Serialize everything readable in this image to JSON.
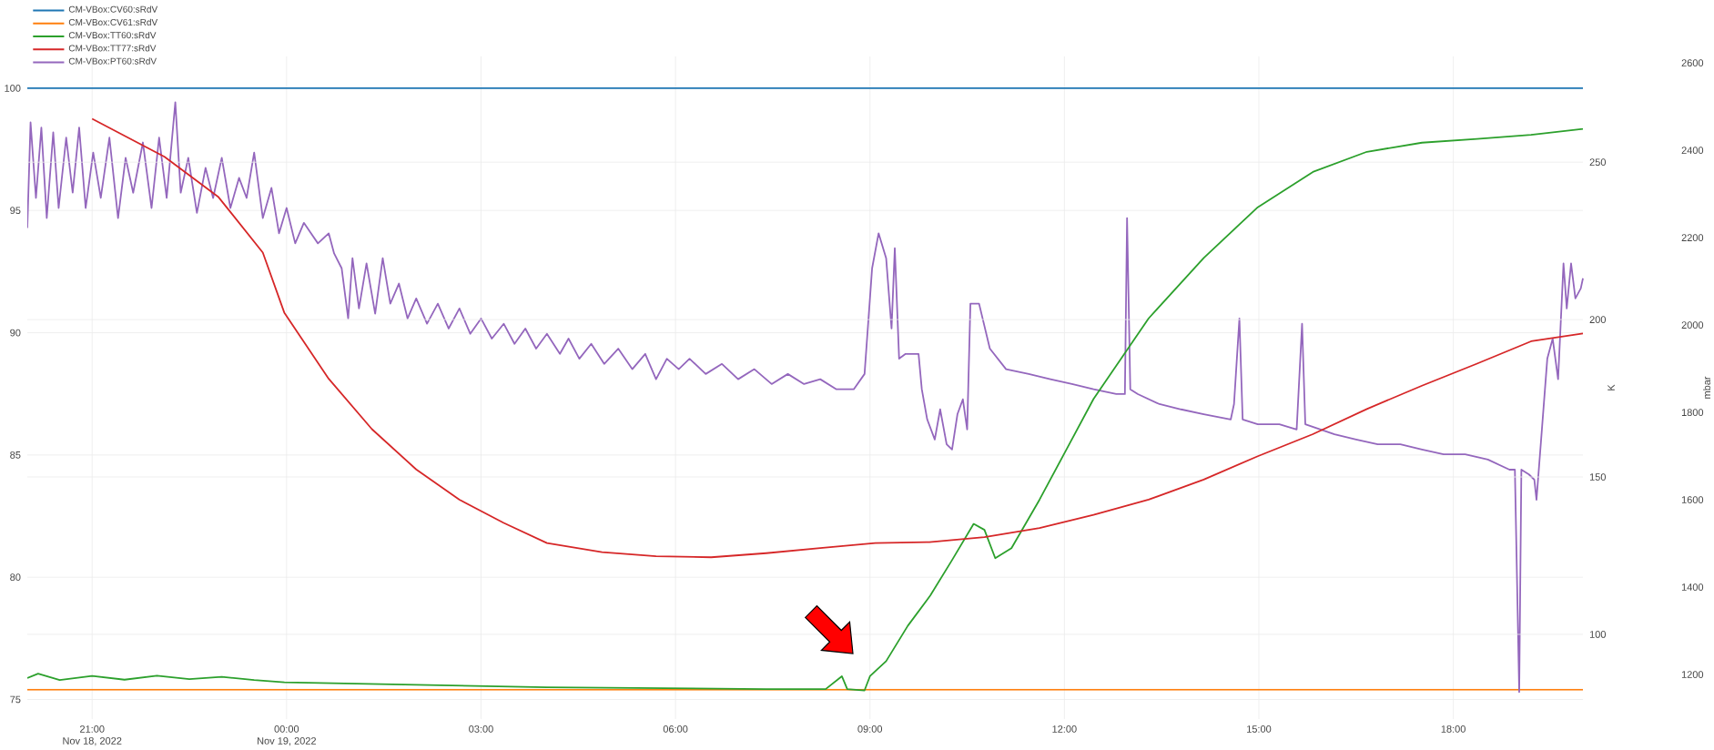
{
  "chart_data": {
    "type": "line",
    "xlim": [
      "2022-11-18T20:00",
      "2022-11-19T20:00"
    ],
    "xticks": [
      {
        "value": "2022-11-18T21:00",
        "label": "21:00\nNov 18, 2022"
      },
      {
        "value": "2022-11-19T00:00",
        "label": "00:00\nNov 19, 2022"
      },
      {
        "value": "2022-11-19T03:00",
        "label": "03:00"
      },
      {
        "value": "2022-11-19T06:00",
        "label": "06:00"
      },
      {
        "value": "2022-11-19T09:00",
        "label": "09:00"
      },
      {
        "value": "2022-11-19T12:00",
        "label": "12:00"
      },
      {
        "value": "2022-11-19T15:00",
        "label": "15:00"
      },
      {
        "value": "2022-11-19T18:00",
        "label": "18:00"
      }
    ],
    "ylim": [
      74.2,
      101.3
    ],
    "yticks": [
      75,
      80,
      85,
      90,
      95,
      100
    ],
    "y2lim": [
      1098,
      2615
    ],
    "y2ticks": [
      1200,
      1400,
      1600,
      1800,
      2000,
      2200,
      2400,
      2600
    ],
    "y2label": "mbar",
    "y3lim": [
      73.1,
      283.6
    ],
    "y3ticks": [
      100,
      150,
      200,
      250
    ],
    "y3label": "K",
    "grid": true,
    "legend": "top left",
    "line_style": "solid",
    "series": [
      {
        "name": "CM-VBox:CV60:sRdV",
        "color": "#1f77b4",
        "axis": "y",
        "x": [
          "2022-11-18T20:00",
          "2022-11-19T20:00"
        ],
        "values": [
          100,
          100
        ]
      },
      {
        "name": "CM-VBox:CV61:sRdV",
        "color": "#ff7f0e",
        "axis": "y",
        "x": [
          "2022-11-18T20:00",
          "2022-11-19T20:00"
        ],
        "values": [
          75.4,
          75.4
        ]
      },
      {
        "name": "CM-VBox:TT60:sRdV",
        "color": "#2ca02c",
        "axis": "y3",
        "x": [
          "2022-11-18T20:00",
          "2022-11-18T20:10",
          "2022-11-18T20:30",
          "2022-11-18T21:00",
          "2022-11-18T21:30",
          "2022-11-18T22:00",
          "2022-11-18T22:30",
          "2022-11-18T23:00",
          "2022-11-18T23:30",
          "2022-11-18T23:58",
          "2022-11-19T04:01",
          "2022-11-19T07:24",
          "2022-11-19T08:19",
          "2022-11-19T08:34",
          "2022-11-19T08:39",
          "2022-11-19T08:55",
          "2022-11-19T09:00",
          "2022-11-19T09:15",
          "2022-11-19T09:35",
          "2022-11-19T09:56",
          "2022-11-19T10:16",
          "2022-11-19T10:36",
          "2022-11-19T10:46",
          "2022-11-19T10:56",
          "2022-11-19T11:11",
          "2022-11-19T11:37",
          "2022-11-19T12:02",
          "2022-11-19T12:27",
          "2022-11-19T13:18",
          "2022-11-19T14:09",
          "2022-11-19T14:59",
          "2022-11-19T15:50",
          "2022-11-19T16:40",
          "2022-11-19T17:31",
          "2022-11-19T18:22",
          "2022-11-19T19:12",
          "2022-11-19T20:00"
        ],
        "values": [
          86.1,
          87.5,
          85.5,
          86.8,
          85.6,
          86.9,
          85.8,
          86.5,
          85.5,
          84.8,
          83.2,
          82.6,
          82.6,
          86.7,
          82.6,
          82.2,
          86.7,
          91.5,
          102.7,
          112.4,
          123.6,
          135.1,
          133.2,
          124.2,
          127.4,
          142.8,
          158.8,
          174.8,
          200.4,
          219.6,
          235.7,
          246.9,
          253.3,
          256.2,
          257.4,
          258.7,
          260.6
        ]
      },
      {
        "name": "CM-VBox:TT77:sRdV",
        "color": "#d62728",
        "axis": "y3",
        "x": [
          "2022-11-18T21:00",
          "2022-11-18T22:07",
          "2022-11-18T22:57",
          "2022-11-18T23:38",
          "2022-11-18T23:58",
          "2022-11-19T00:39",
          "2022-11-19T01:19",
          "2022-11-19T02:00",
          "2022-11-19T02:40",
          "2022-11-19T03:21",
          "2022-11-19T04:01",
          "2022-11-19T04:52",
          "2022-11-19T05:42",
          "2022-11-19T06:33",
          "2022-11-19T07:24",
          "2022-11-19T08:14",
          "2022-11-19T09:05",
          "2022-11-19T09:55",
          "2022-11-19T10:46",
          "2022-11-19T11:37",
          "2022-11-19T12:27",
          "2022-11-19T13:18",
          "2022-11-19T14:09",
          "2022-11-19T14:59",
          "2022-11-19T15:50",
          "2022-11-19T16:40",
          "2022-11-19T17:31",
          "2022-11-19T18:22",
          "2022-11-19T19:12",
          "2022-11-19T20:00"
        ],
        "values": [
          263.8,
          251.7,
          238.9,
          221.3,
          202.1,
          181.2,
          165.2,
          152.4,
          142.8,
          135.4,
          129.0,
          126.1,
          124.8,
          124.5,
          125.8,
          127.4,
          129.0,
          129.3,
          130.9,
          133.8,
          138.0,
          142.8,
          149.2,
          156.6,
          163.6,
          171.6,
          179.0,
          186.0,
          193.1,
          195.6
        ]
      },
      {
        "name": "CM-VBox:PT60:sRdV",
        "color": "#9467bd",
        "axis": "y2",
        "x": [
          "2022-11-18T20:00",
          "2022-11-18T20:03",
          "2022-11-18T20:08",
          "2022-11-18T20:13",
          "2022-11-18T20:18",
          "2022-11-18T20:24",
          "2022-11-18T20:29",
          "2022-11-18T20:36",
          "2022-11-18T20:42",
          "2022-11-18T20:48",
          "2022-11-18T20:54",
          "2022-11-18T21:01",
          "2022-11-18T21:08",
          "2022-11-18T21:16",
          "2022-11-18T21:24",
          "2022-11-18T21:31",
          "2022-11-18T21:38",
          "2022-11-18T21:47",
          "2022-11-18T21:55",
          "2022-11-18T22:02",
          "2022-11-18T22:09",
          "2022-11-18T22:17",
          "2022-11-18T22:22",
          "2022-11-18T22:29",
          "2022-11-18T22:37",
          "2022-11-18T22:45",
          "2022-11-18T22:52",
          "2022-11-18T23:00",
          "2022-11-18T23:08",
          "2022-11-18T23:16",
          "2022-11-18T23:23",
          "2022-11-18T23:30",
          "2022-11-18T23:38",
          "2022-11-18T23:46",
          "2022-11-18T23:53",
          "2022-11-19T00:00",
          "2022-11-19T00:08",
          "2022-11-19T00:16",
          "2022-11-19T00:29",
          "2022-11-19T00:39",
          "2022-11-19T00:44",
          "2022-11-19T00:51",
          "2022-11-19T00:57",
          "2022-11-19T01:01",
          "2022-11-19T01:07",
          "2022-11-19T01:14",
          "2022-11-19T01:22",
          "2022-11-19T01:29",
          "2022-11-19T01:36",
          "2022-11-19T01:44",
          "2022-11-19T01:52",
          "2022-11-19T02:00",
          "2022-11-19T02:10",
          "2022-11-19T02:20",
          "2022-11-19T02:30",
          "2022-11-19T02:40",
          "2022-11-19T02:50",
          "2022-11-19T03:00",
          "2022-11-19T03:10",
          "2022-11-19T03:21",
          "2022-11-19T03:31",
          "2022-11-19T03:41",
          "2022-11-19T03:51",
          "2022-11-19T04:01",
          "2022-11-19T04:13",
          "2022-11-19T04:21",
          "2022-11-19T04:31",
          "2022-11-19T04:42",
          "2022-11-19T04:54",
          "2022-11-19T05:07",
          "2022-11-19T05:20",
          "2022-11-19T05:32",
          "2022-11-19T05:42",
          "2022-11-19T05:52",
          "2022-11-19T06:03",
          "2022-11-19T06:13",
          "2022-11-19T06:28",
          "2022-11-19T06:43",
          "2022-11-19T06:58",
          "2022-11-19T07:13",
          "2022-11-19T07:29",
          "2022-11-19T07:44",
          "2022-11-19T07:59",
          "2022-11-19T08:14",
          "2022-11-19T08:29",
          "2022-11-19T08:45",
          "2022-11-19T08:55",
          "2022-11-19T09:02",
          "2022-11-19T09:08",
          "2022-11-19T09:15",
          "2022-11-19T09:20",
          "2022-11-19T09:23",
          "2022-11-19T09:27",
          "2022-11-19T09:33",
          "2022-11-19T09:45",
          "2022-11-19T09:48",
          "2022-11-19T09:53",
          "2022-11-19T10:00",
          "2022-11-19T10:05",
          "2022-11-19T10:11",
          "2022-11-19T10:16",
          "2022-11-19T10:21",
          "2022-11-19T10:26",
          "2022-11-19T10:30",
          "2022-11-19T10:33",
          "2022-11-19T10:41",
          "2022-11-19T10:51",
          "2022-11-19T11:06",
          "2022-11-19T11:27",
          "2022-11-19T11:47",
          "2022-11-19T12:07",
          "2022-11-19T12:27",
          "2022-11-19T12:48",
          "2022-11-19T12:56",
          "2022-11-19T12:58",
          "2022-11-19T13:01",
          "2022-11-19T13:08",
          "2022-11-19T13:28",
          "2022-11-19T13:48",
          "2022-11-19T14:09",
          "2022-11-19T14:34",
          "2022-11-19T14:37",
          "2022-11-19T14:42",
          "2022-11-19T14:45",
          "2022-11-19T14:59",
          "2022-11-19T15:19",
          "2022-11-19T15:35",
          "2022-11-19T15:40",
          "2022-11-19T15:43",
          "2022-11-19T16:10",
          "2022-11-19T16:30",
          "2022-11-19T16:50",
          "2022-11-19T17:11",
          "2022-11-19T17:31",
          "2022-11-19T17:51",
          "2022-11-19T18:11",
          "2022-11-19T18:32",
          "2022-11-19T18:52",
          "2022-11-19T18:57",
          "2022-11-19T19:01",
          "2022-11-19T19:03",
          "2022-11-19T19:10",
          "2022-11-19T19:15",
          "2022-11-19T19:17",
          "2022-11-19T19:22",
          "2022-11-19T19:27",
          "2022-11-19T19:32",
          "2022-11-19T19:37",
          "2022-11-19T19:42",
          "2022-11-19T19:45",
          "2022-11-19T19:49",
          "2022-11-19T19:53",
          "2022-11-19T19:58",
          "2022-11-19T20:00"
        ],
        "values": [
          2222,
          2464,
          2291,
          2452,
          2245,
          2441,
          2268,
          2429,
          2303,
          2452,
          2268,
          2395,
          2291,
          2429,
          2245,
          2383,
          2303,
          2418,
          2268,
          2429,
          2291,
          2510,
          2303,
          2383,
          2257,
          2360,
          2291,
          2383,
          2268,
          2337,
          2291,
          2395,
          2245,
          2314,
          2210,
          2268,
          2187,
          2234,
          2187,
          2210,
          2164,
          2130,
          2015,
          2153,
          2038,
          2141,
          2026,
          2153,
          2049,
          2095,
          2015,
          2061,
          2003,
          2049,
          1992,
          2038,
          1980,
          2015,
          1969,
          2003,
          1957,
          1992,
          1946,
          1980,
          1934,
          1969,
          1923,
          1957,
          1911,
          1946,
          1899,
          1934,
          1876,
          1923,
          1899,
          1923,
          1888,
          1911,
          1876,
          1899,
          1865,
          1888,
          1865,
          1876,
          1853,
          1853,
          1888,
          2130,
          2210,
          2153,
          1992,
          2176,
          1923,
          1934,
          1934,
          1853,
          1784,
          1738,
          1807,
          1727,
          1715,
          1796,
          1830,
          1761,
          2049,
          2049,
          1946,
          1899,
          1888,
          1876,
          1865,
          1853,
          1842,
          1842,
          2245,
          1853,
          1842,
          1819,
          1807,
          1796,
          1784,
          1819,
          2015,
          1784,
          1773,
          1773,
          1761,
          2003,
          1773,
          1750,
          1738,
          1727,
          1727,
          1715,
          1704,
          1704,
          1692,
          1669,
          1669,
          1160,
          1669,
          1658,
          1646,
          1600,
          1761,
          1923,
          1969,
          1876,
          2141,
          2038,
          2141,
          2061,
          2084,
          2107
        ]
      }
    ]
  }
}
